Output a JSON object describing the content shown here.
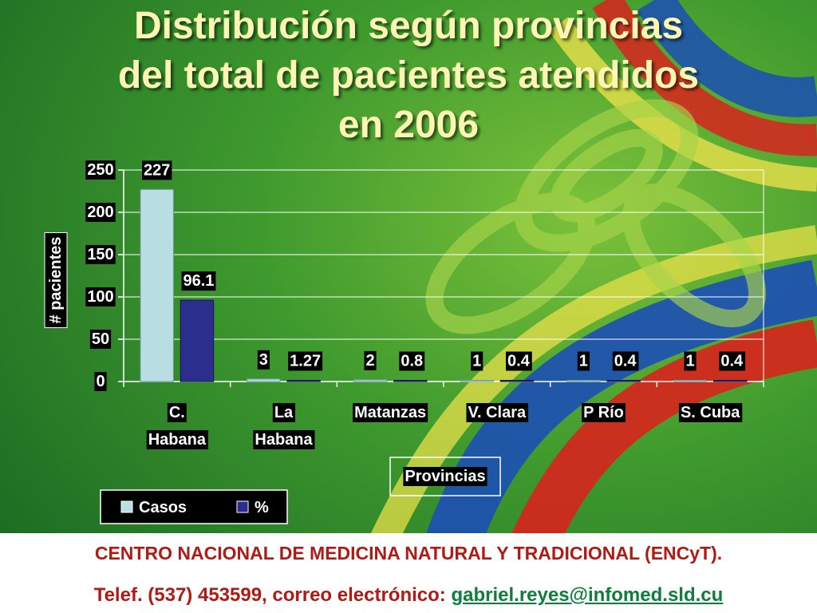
{
  "slide": {
    "title_lines": [
      "Distribución según provincias",
      "del total de pacientes atendidos",
      "en 2006"
    ],
    "footer": {
      "line1": "CENTRO NACIONAL DE MEDICINA NATURAL Y TRADICIONAL (ENCyT).",
      "line2_prefix": "Telef. (537) 453599, correo electrónico: ",
      "email": "gabriel.reyes@infomed.sld.cu"
    }
  },
  "colors": {
    "casos": "#b8dde3",
    "percent": "#2b2e8c",
    "title": "#fbf6b4",
    "footer_text": "#b01a14",
    "email": "#0c7f3a"
  },
  "chart_data": {
    "type": "bar",
    "title": "Distribución según provincias del total de pacientes atendidos en 2006",
    "xlabel": "Provincias",
    "ylabel": "# pacientes",
    "ylim": [
      0,
      250
    ],
    "yticks": [
      "0",
      "50",
      "100",
      "150",
      "200",
      "250"
    ],
    "grid": true,
    "legend_position": "bottom-left",
    "categories": [
      [
        "C.",
        "Habana"
      ],
      [
        "La",
        "Habana"
      ],
      [
        "Matanzas"
      ],
      [
        "V. Clara"
      ],
      [
        "P Río"
      ],
      [
        "S. Cuba"
      ]
    ],
    "series": [
      {
        "name": "Casos",
        "values": [
          227,
          3,
          2,
          1,
          1,
          1
        ],
        "labels": [
          "227",
          "3",
          "2",
          "1",
          "1",
          "1"
        ]
      },
      {
        "name": "%",
        "values": [
          96.1,
          1.27,
          0.8,
          0.4,
          0.4,
          0.4
        ],
        "labels": [
          "96.1",
          "1.27",
          "0.8",
          "0.4",
          "0.4",
          "0.4"
        ]
      }
    ]
  }
}
